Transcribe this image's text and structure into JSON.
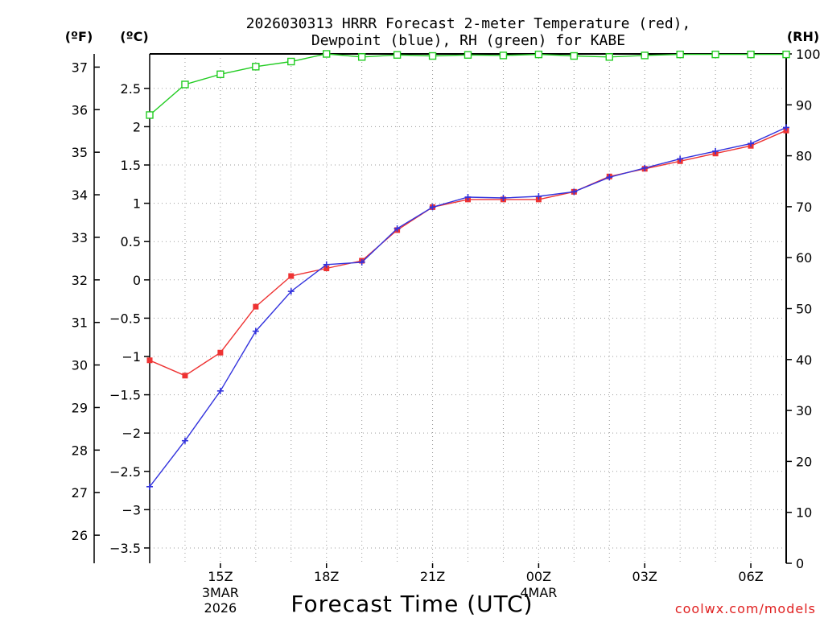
{
  "chart_data": {
    "type": "line",
    "title_line1": "2026030313 HRRR Forecast 2-meter Temperature (red),",
    "title_line2": "Dewpoint (blue), RH (green) for KABE",
    "unit_f": "(ºF)",
    "unit_c": "(ºC)",
    "unit_rh": "(RH)",
    "xlabel": "Forecast Time (UTC)",
    "credit": "coolwx.com/models",
    "x_hours": [
      13,
      14,
      15,
      16,
      17,
      18,
      19,
      20,
      21,
      22,
      23,
      24,
      25,
      26,
      27,
      28,
      29,
      30,
      31
    ],
    "x_ticks": [
      {
        "hour": 15,
        "label": "15Z",
        "sub1": "3MAR",
        "sub2": "2026"
      },
      {
        "hour": 18,
        "label": "18Z",
        "sub1": "",
        "sub2": ""
      },
      {
        "hour": 21,
        "label": "21Z",
        "sub1": "",
        "sub2": ""
      },
      {
        "hour": 24,
        "label": "00Z",
        "sub1": "4MAR",
        "sub2": ""
      },
      {
        "hour": 27,
        "label": "03Z",
        "sub1": "",
        "sub2": ""
      },
      {
        "hour": 30,
        "label": "06Z",
        "sub1": "",
        "sub2": ""
      }
    ],
    "xlim": [
      13,
      31
    ],
    "celsius_axis": {
      "ylim": [
        -3.7,
        2.95
      ],
      "ticks": [
        {
          "v": 2.5,
          "label": "2.5"
        },
        {
          "v": 2,
          "label": "2"
        },
        {
          "v": 1.5,
          "label": "1.5"
        },
        {
          "v": 1,
          "label": "1"
        },
        {
          "v": 0.5,
          "label": "0.5"
        },
        {
          "v": 0,
          "label": "0"
        },
        {
          "v": -0.5,
          "label": "−0.5"
        },
        {
          "v": -1,
          "label": "−1"
        },
        {
          "v": -1.5,
          "label": "−1.5"
        },
        {
          "v": -2,
          "label": "−2"
        },
        {
          "v": -2.5,
          "label": "−2.5"
        },
        {
          "v": -3,
          "label": "−3"
        },
        {
          "v": -3.5,
          "label": "−3.5"
        }
      ]
    },
    "fahrenheit_axis": {
      "ticks": [
        "26",
        "27",
        "28",
        "29",
        "30",
        "31",
        "32",
        "33",
        "34",
        "35",
        "36",
        "37"
      ]
    },
    "rh_axis": {
      "ylim": [
        0,
        100
      ],
      "ticks": [
        "0",
        "10",
        "20",
        "30",
        "40",
        "50",
        "60",
        "70",
        "80",
        "90",
        "100"
      ]
    },
    "series": [
      {
        "name": "Temperature",
        "units": "C",
        "color": "#ee3333",
        "marker": "square-filled",
        "values": [
          -1.05,
          -1.25,
          -0.95,
          -0.35,
          0.05,
          0.15,
          0.25,
          0.65,
          0.95,
          1.05,
          1.05,
          1.05,
          1.15,
          1.35,
          1.45,
          1.55,
          1.65,
          1.75,
          1.95
        ]
      },
      {
        "name": "Dewpoint",
        "units": "C",
        "color": "#3333dd",
        "marker": "plus",
        "values": [
          -2.7,
          -2.1,
          -1.45,
          -0.67,
          -0.15,
          0.2,
          0.23,
          0.67,
          0.95,
          1.08,
          1.07,
          1.09,
          1.15,
          1.34,
          1.46,
          1.58,
          1.68,
          1.78,
          1.99
        ]
      },
      {
        "name": "RH",
        "units": "%",
        "color": "#22cc22",
        "marker": "square-open",
        "values": [
          88,
          94,
          96,
          97.5,
          98.5,
          100,
          99.4,
          99.8,
          99.6,
          99.8,
          99.7,
          99.9,
          99.6,
          99.4,
          99.7,
          99.9,
          99.9,
          99.9,
          99.9
        ]
      }
    ]
  }
}
